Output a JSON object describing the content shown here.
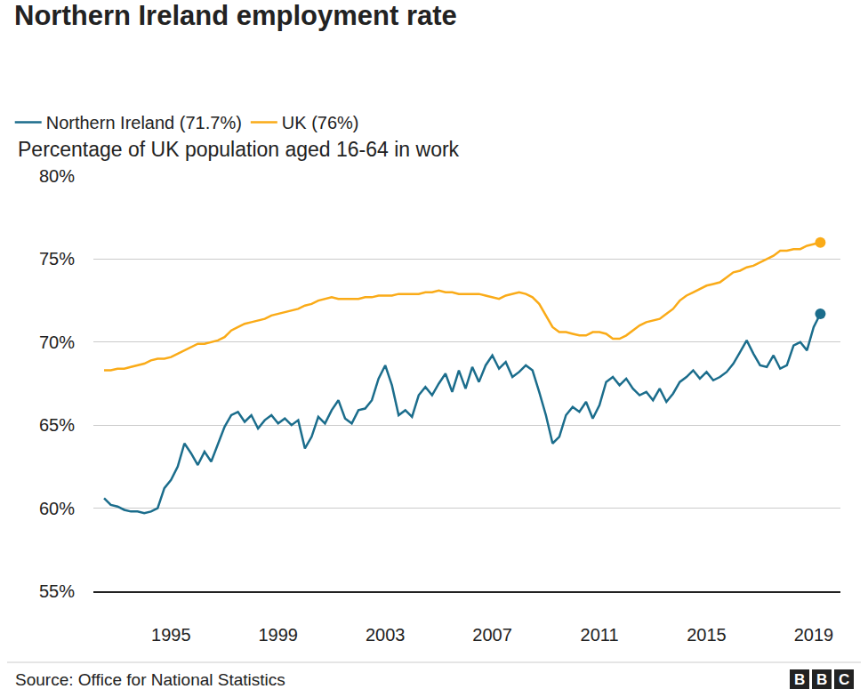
{
  "chart_data": {
    "type": "line",
    "title": "Northern Ireland employment rate",
    "subtitle": "Percentage of UK population aged 16-64 in work",
    "source": "Source: Office for National Statistics",
    "logo": "BBC",
    "x": [
      1992.5,
      1992.75,
      1993,
      1993.25,
      1993.5,
      1993.75,
      1994,
      1994.25,
      1994.5,
      1994.75,
      1995,
      1995.25,
      1995.5,
      1995.75,
      1996,
      1996.25,
      1996.5,
      1996.75,
      1997,
      1997.25,
      1997.5,
      1997.75,
      1998,
      1998.25,
      1998.5,
      1998.75,
      1999,
      1999.25,
      1999.5,
      1999.75,
      2000,
      2000.25,
      2000.5,
      2000.75,
      2001,
      2001.25,
      2001.5,
      2001.75,
      2002,
      2002.25,
      2002.5,
      2002.75,
      2003,
      2003.25,
      2003.5,
      2003.75,
      2004,
      2004.25,
      2004.5,
      2004.75,
      2005,
      2005.25,
      2005.5,
      2005.75,
      2006,
      2006.25,
      2006.5,
      2006.75,
      2007,
      2007.25,
      2007.5,
      2007.75,
      2008,
      2008.25,
      2008.5,
      2008.75,
      2009,
      2009.25,
      2009.5,
      2009.75,
      2010,
      2010.25,
      2010.5,
      2010.75,
      2011,
      2011.25,
      2011.5,
      2011.75,
      2012,
      2012.25,
      2012.5,
      2012.75,
      2013,
      2013.25,
      2013.5,
      2013.75,
      2014,
      2014.25,
      2014.5,
      2014.75,
      2015,
      2015.25,
      2015.5,
      2015.75,
      2016,
      2016.25,
      2016.5,
      2016.75,
      2017,
      2017.25,
      2017.5,
      2017.75,
      2018,
      2018.25,
      2018.5,
      2018.75,
      2019,
      2019.25
    ],
    "series": [
      {
        "name": "Northern Ireland (71.7%)",
        "color": "#1b6d8c",
        "values": [
          60.6,
          60.2,
          60.1,
          59.9,
          59.8,
          59.8,
          59.7,
          59.8,
          60.0,
          61.2,
          61.7,
          62.5,
          63.9,
          63.3,
          62.6,
          63.4,
          62.8,
          63.9,
          64.9,
          65.6,
          65.8,
          65.2,
          65.6,
          64.8,
          65.3,
          65.6,
          65.1,
          65.4,
          65.0,
          65.3,
          63.6,
          64.3,
          65.5,
          65.1,
          65.9,
          66.5,
          65.4,
          65.1,
          65.9,
          66.0,
          66.5,
          67.8,
          68.6,
          67.4,
          65.6,
          65.9,
          65.5,
          66.8,
          67.3,
          66.8,
          67.5,
          68.1,
          67.0,
          68.3,
          67.2,
          68.5,
          67.6,
          68.6,
          69.2,
          68.4,
          68.8,
          67.9,
          68.2,
          68.6,
          68.3,
          67.0,
          65.6,
          63.9,
          64.3,
          65.6,
          66.1,
          65.8,
          66.4,
          65.4,
          66.2,
          67.6,
          67.9,
          67.4,
          67.8,
          67.2,
          66.8,
          67.0,
          66.5,
          67.2,
          66.4,
          66.9,
          67.6,
          67.9,
          68.3,
          67.8,
          68.2,
          67.7,
          67.9,
          68.2,
          68.7,
          69.4,
          70.1,
          69.3,
          68.6,
          68.5,
          69.2,
          68.4,
          68.6,
          69.8,
          70.0,
          69.5,
          70.9,
          71.7
        ]
      },
      {
        "name": "UK (76%)",
        "color": "#faab18",
        "values": [
          68.3,
          68.3,
          68.4,
          68.4,
          68.5,
          68.6,
          68.7,
          68.9,
          69.0,
          69.0,
          69.1,
          69.3,
          69.5,
          69.7,
          69.9,
          69.9,
          70.0,
          70.1,
          70.3,
          70.7,
          70.9,
          71.1,
          71.2,
          71.3,
          71.4,
          71.6,
          71.7,
          71.8,
          71.9,
          72.0,
          72.2,
          72.3,
          72.5,
          72.6,
          72.7,
          72.6,
          72.6,
          72.6,
          72.6,
          72.7,
          72.7,
          72.8,
          72.8,
          72.8,
          72.9,
          72.9,
          72.9,
          72.9,
          73.0,
          73.0,
          73.1,
          73.0,
          73.0,
          72.9,
          72.9,
          72.9,
          72.9,
          72.8,
          72.7,
          72.6,
          72.8,
          72.9,
          73.0,
          72.9,
          72.7,
          72.3,
          71.6,
          70.9,
          70.6,
          70.6,
          70.5,
          70.4,
          70.4,
          70.6,
          70.6,
          70.5,
          70.2,
          70.2,
          70.4,
          70.7,
          71.0,
          71.2,
          71.3,
          71.4,
          71.7,
          72.0,
          72.5,
          72.8,
          73.0,
          73.2,
          73.4,
          73.5,
          73.6,
          73.9,
          74.2,
          74.3,
          74.5,
          74.6,
          74.8,
          75.0,
          75.2,
          75.5,
          75.5,
          75.6,
          75.6,
          75.8,
          75.9,
          76.0
        ]
      }
    ],
    "xlim": [
      1992.1,
      2020
    ],
    "xticks": [
      1995,
      1999,
      2003,
      2007,
      2011,
      2015,
      2019
    ],
    "ylim": [
      55,
      80
    ],
    "yticks": [
      {
        "value": 55,
        "label": "55%"
      },
      {
        "value": 60,
        "label": "60%"
      },
      {
        "value": 65,
        "label": "65%"
      },
      {
        "value": 70,
        "label": "70%"
      },
      {
        "value": 75,
        "label": "75%"
      },
      {
        "value": 80,
        "label": "80%"
      }
    ],
    "grid": true,
    "legend": "top left"
  }
}
